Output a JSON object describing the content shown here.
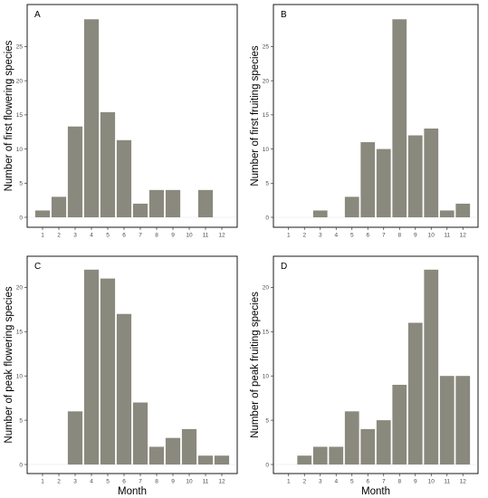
{
  "chart_data": [
    {
      "type": "bar",
      "panel_label": "A",
      "ylabel": "Number of first flowering species",
      "xlabel": "",
      "categories": [
        "1",
        "2",
        "3",
        "4",
        "5",
        "6",
        "7",
        "8",
        "9",
        "10",
        "11",
        "12"
      ],
      "values": [
        1,
        3,
        13.3,
        29,
        15.4,
        11.3,
        2,
        4,
        4,
        0,
        4,
        0
      ],
      "ylim": [
        0,
        29.7
      ],
      "yticks": [
        0,
        5,
        10,
        15,
        20,
        25
      ],
      "bar_color": "#8a897d",
      "grid": false,
      "legend": "none"
    },
    {
      "type": "bar",
      "panel_label": "B",
      "ylabel": "Number of first fruiting species",
      "xlabel": "",
      "categories": [
        "1",
        "2",
        "3",
        "4",
        "5",
        "6",
        "7",
        "8",
        "9",
        "10",
        "11",
        "12"
      ],
      "values": [
        0,
        0,
        1,
        0,
        3,
        11,
        10,
        29,
        12,
        13,
        1,
        2
      ],
      "ylim": [
        0,
        29.7
      ],
      "yticks": [
        0,
        5,
        10,
        15,
        20,
        25
      ],
      "bar_color": "#8a897d",
      "grid": false,
      "legend": "none"
    },
    {
      "type": "bar",
      "panel_label": "C",
      "ylabel": "Number of peak flowering species",
      "xlabel": "Month",
      "categories": [
        "1",
        "2",
        "3",
        "4",
        "5",
        "6",
        "7",
        "8",
        "9",
        "10",
        "11",
        "12"
      ],
      "values": [
        0,
        0,
        6,
        22,
        21,
        17,
        7,
        2,
        3,
        4,
        1,
        1
      ],
      "ylim": [
        0,
        22.8
      ],
      "yticks": [
        0,
        5,
        10,
        15,
        20
      ],
      "bar_color": "#8a897d",
      "grid": false,
      "legend": "none"
    },
    {
      "type": "bar",
      "panel_label": "D",
      "ylabel": "Number of peak fruiting species",
      "xlabel": "Month",
      "categories": [
        "1",
        "2",
        "3",
        "4",
        "5",
        "6",
        "7",
        "8",
        "9",
        "10",
        "11",
        "12"
      ],
      "values": [
        0,
        1,
        2,
        2,
        6,
        4,
        5,
        9,
        16,
        22,
        10,
        10
      ],
      "ylim": [
        0,
        22.8
      ],
      "yticks": [
        0,
        5,
        10,
        15,
        20
      ],
      "bar_color": "#8a897d",
      "grid": false,
      "legend": "none"
    }
  ]
}
